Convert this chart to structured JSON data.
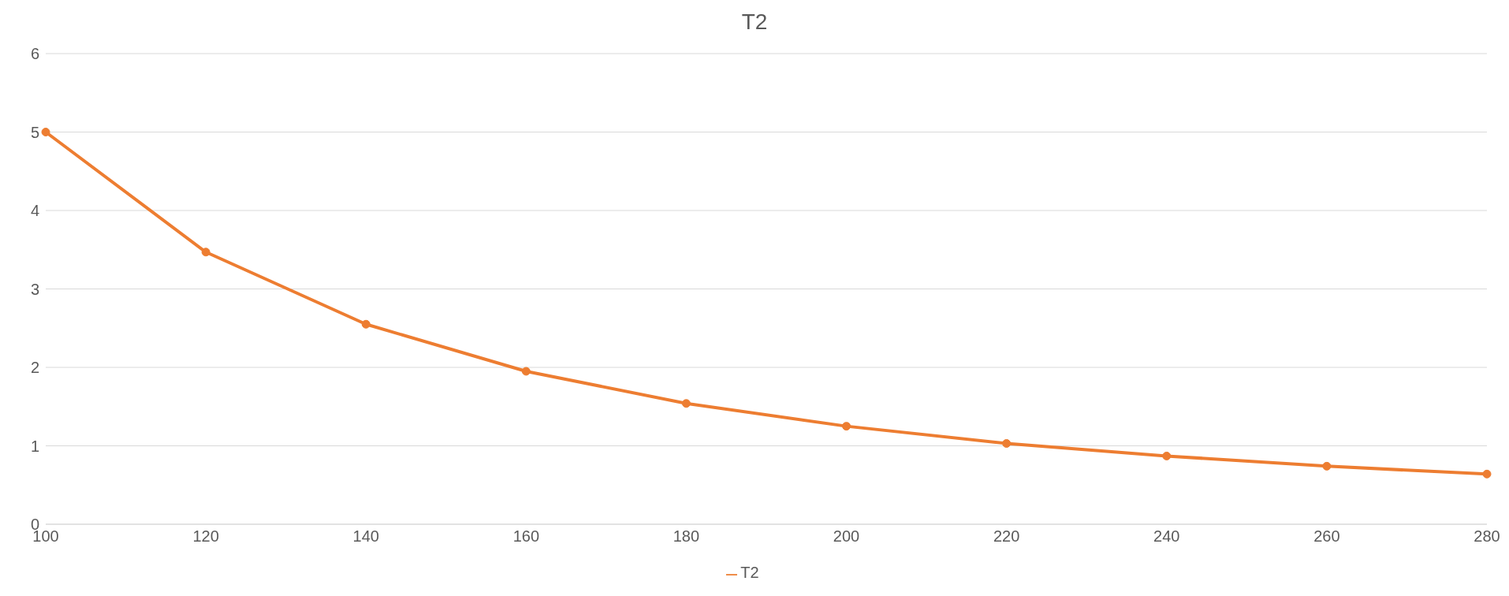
{
  "chart_data": {
    "type": "line",
    "title": "T2",
    "categories": [
      "100",
      "120",
      "140",
      "160",
      "180",
      "200",
      "220",
      "240",
      "260",
      "280"
    ],
    "series": [
      {
        "name": "T2",
        "color": "#ed7d31",
        "values": [
          5,
          3.47,
          2.55,
          1.95,
          1.54,
          1.25,
          1.03,
          0.87,
          0.74,
          0.64
        ]
      }
    ],
    "ylim": [
      0,
      6
    ],
    "yticks": [
      0,
      1,
      2,
      3,
      4,
      5,
      6
    ],
    "grid": "y",
    "legend": "bottom",
    "marker": "circle",
    "line_style": "solid"
  }
}
